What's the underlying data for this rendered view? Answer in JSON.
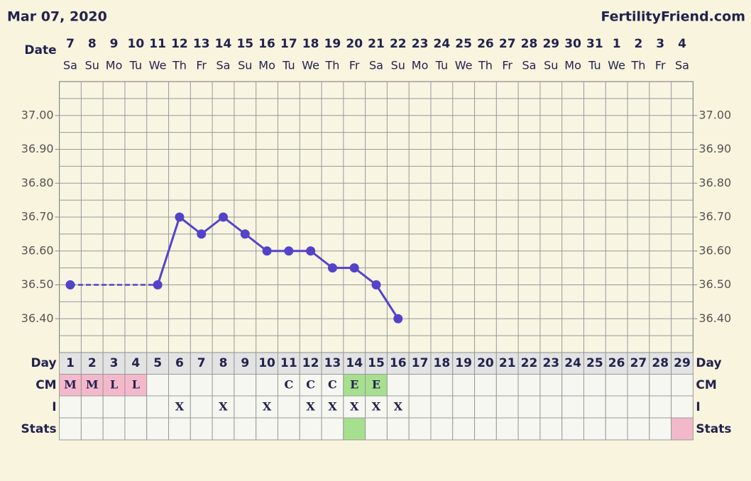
{
  "chart_data": {
    "type": "line",
    "title": "Mar 07, 2020",
    "source": "FertilityFriend.com",
    "x_label": "Date",
    "dates": [
      "7",
      "8",
      "9",
      "10",
      "11",
      "12",
      "13",
      "14",
      "15",
      "16",
      "17",
      "18",
      "19",
      "20",
      "21",
      "22",
      "23",
      "24",
      "25",
      "26",
      "27",
      "28",
      "29",
      "30",
      "31",
      "1",
      "2",
      "3",
      "4"
    ],
    "weekdays": [
      "Sa",
      "Su",
      "Mo",
      "Tu",
      "We",
      "Th",
      "Fr",
      "Sa",
      "Su",
      "Mo",
      "Tu",
      "We",
      "Th",
      "Fr",
      "Sa",
      "Su",
      "Mo",
      "Tu",
      "We",
      "Th",
      "Fr",
      "Sa",
      "Su",
      "Mo",
      "Tu",
      "We",
      "Th",
      "Fr",
      "Sa"
    ],
    "day_label": "Day",
    "x": [
      1,
      2,
      3,
      4,
      5,
      6,
      7,
      8,
      9,
      10,
      11,
      12,
      13,
      14,
      15,
      16,
      17,
      18,
      19,
      20,
      21,
      22,
      23,
      24,
      25,
      26,
      27,
      28,
      29
    ],
    "series": [
      {
        "color": "#5443c9",
        "values": [
          36.5,
          null,
          null,
          null,
          36.5,
          36.7,
          36.65,
          36.7,
          36.65,
          36.6,
          36.6,
          36.6,
          36.55,
          36.55,
          36.5,
          36.4,
          null,
          null,
          null,
          null,
          null,
          null,
          null,
          null,
          null,
          null,
          null,
          null,
          null
        ]
      }
    ],
    "ylim": [
      36.3,
      37.1
    ],
    "yticks": [
      {
        "value": 36.4,
        "label": "36.40"
      },
      {
        "value": 36.5,
        "label": "36.50"
      },
      {
        "value": 36.6,
        "label": "36.60"
      },
      {
        "value": 36.7,
        "label": "36.70"
      },
      {
        "value": 36.8,
        "label": "36.80"
      },
      {
        "value": 36.9,
        "label": "36.90"
      },
      {
        "value": 37.0,
        "label": "37.00"
      }
    ],
    "minor_yticks": [
      36.35,
      36.45,
      36.55,
      36.65,
      36.75,
      36.85,
      36.95,
      37.05
    ],
    "grid": true,
    "cm": {
      "label": "CM",
      "values": [
        "M",
        "M",
        "L",
        "L",
        null,
        null,
        null,
        null,
        null,
        null,
        "C",
        "C",
        "C",
        "E",
        "E",
        null,
        null,
        null,
        null,
        null,
        null,
        null,
        null,
        null,
        null,
        null,
        null,
        null,
        null
      ],
      "colors": {
        "M": "#f3b9cb",
        "L": "#f3b9cb",
        "E": "#a6e08e"
      }
    },
    "intercourse": {
      "label": "I",
      "values": [
        null,
        null,
        null,
        null,
        null,
        "X",
        null,
        "X",
        null,
        "X",
        null,
        "X",
        "X",
        "X",
        "X",
        "X",
        null,
        null,
        null,
        null,
        null,
        null,
        null,
        null,
        null,
        null,
        null,
        null,
        null
      ]
    },
    "stats": {
      "label": "Stats",
      "colors": [
        null,
        null,
        null,
        null,
        null,
        null,
        null,
        null,
        null,
        null,
        null,
        null,
        null,
        "#a6e08e",
        null,
        null,
        null,
        null,
        null,
        null,
        null,
        null,
        null,
        null,
        null,
        null,
        null,
        null,
        "#f3b9cb"
      ]
    }
  }
}
